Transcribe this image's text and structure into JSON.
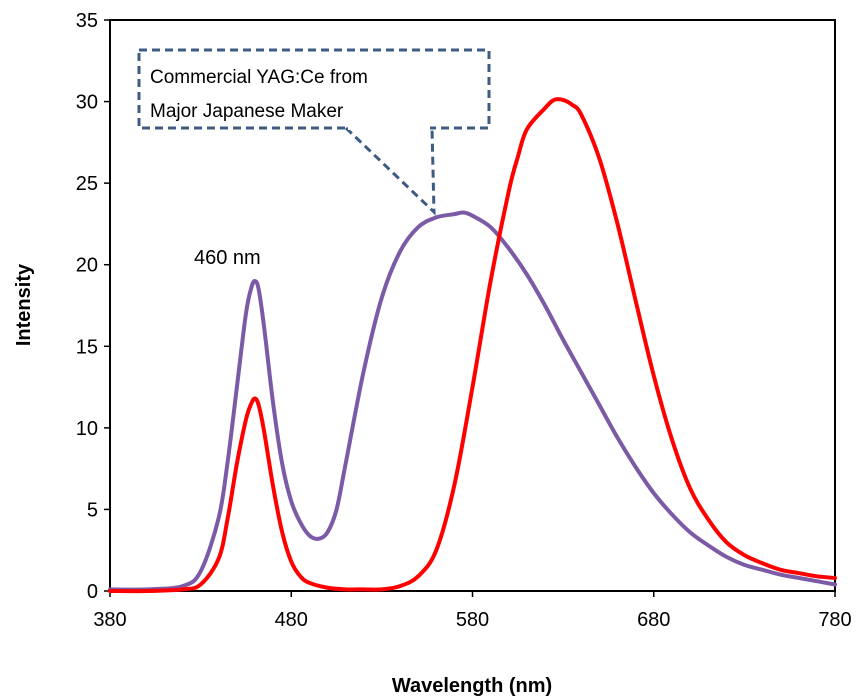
{
  "chart_data": {
    "type": "line",
    "xlabel": "Wavelength (nm)",
    "ylabel": "Intensity",
    "xlim": [
      380,
      780
    ],
    "ylim": [
      0,
      35
    ],
    "x_ticks": [
      "380",
      "480",
      "580",
      "680",
      "780"
    ],
    "y_ticks": [
      "0",
      "5",
      "10",
      "15",
      "20",
      "25",
      "30",
      "35"
    ],
    "grid": false,
    "legend": "none",
    "annotations": {
      "peak_label": "460 nm",
      "callout_line1": "Commercial YAG:Ce from",
      "callout_line2": "Major Japanese Maker"
    },
    "series": [
      {
        "color": "#7b5aa6",
        "x": [
          380,
          400,
          420,
          430,
          440,
          445,
          450,
          455,
          458,
          460,
          462,
          465,
          470,
          475,
          480,
          485,
          490,
          495,
          500,
          505,
          510,
          520,
          530,
          540,
          550,
          560,
          570,
          575,
          580,
          590,
          600,
          610,
          620,
          630,
          640,
          650,
          660,
          670,
          680,
          690,
          700,
          710,
          720,
          730,
          740,
          750,
          760,
          770,
          780
        ],
        "y": [
          0.1,
          0.1,
          0.3,
          1.2,
          4.5,
          8.0,
          12.5,
          17.0,
          18.6,
          19.0,
          18.5,
          16.2,
          11.5,
          7.8,
          5.5,
          4.2,
          3.4,
          3.2,
          3.6,
          5.0,
          7.8,
          13.5,
          18.0,
          20.8,
          22.3,
          22.9,
          23.1,
          23.2,
          23.0,
          22.3,
          21.0,
          19.4,
          17.5,
          15.4,
          13.4,
          11.4,
          9.4,
          7.6,
          6.0,
          4.7,
          3.6,
          2.8,
          2.1,
          1.6,
          1.3,
          1.0,
          0.8,
          0.6,
          0.4
        ]
      },
      {
        "color": "#ff0000",
        "x": [
          380,
          400,
          420,
          430,
          440,
          445,
          450,
          455,
          458,
          460,
          462,
          465,
          470,
          475,
          480,
          485,
          490,
          500,
          510,
          520,
          530,
          540,
          550,
          560,
          570,
          580,
          590,
          600,
          605,
          610,
          620,
          625,
          630,
          635,
          640,
          650,
          660,
          670,
          680,
          690,
          700,
          710,
          720,
          730,
          740,
          750,
          760,
          770,
          780
        ],
        "y": [
          0.0,
          0.0,
          0.1,
          0.4,
          2.0,
          4.5,
          7.8,
          10.5,
          11.5,
          11.8,
          11.4,
          9.8,
          6.4,
          3.6,
          1.8,
          0.9,
          0.5,
          0.2,
          0.1,
          0.1,
          0.1,
          0.3,
          0.9,
          2.5,
          6.5,
          12.5,
          19.0,
          24.5,
          26.6,
          28.3,
          29.6,
          30.1,
          30.1,
          29.8,
          29.2,
          26.5,
          22.5,
          17.8,
          13.2,
          9.3,
          6.3,
          4.4,
          3.0,
          2.2,
          1.7,
          1.3,
          1.1,
          0.9,
          0.8
        ]
      }
    ]
  }
}
